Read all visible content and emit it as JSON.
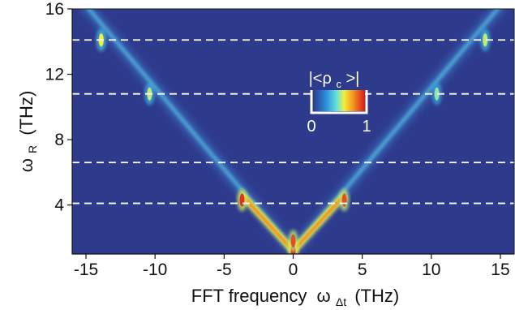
{
  "chart_data": {
    "type": "heatmap",
    "title": "",
    "xlabel": "FFT frequency",
    "xlabel_symbol": "ω",
    "xlabel_subscript": "Δt",
    "xlabel_unit": "(THz)",
    "ylabel_symbol": "ω",
    "ylabel_subscript": "R",
    "ylabel_unit": "(THz)",
    "xlim": [
      -16,
      16
    ],
    "ylim": [
      1,
      16
    ],
    "x_ticks": [
      -15,
      -10,
      -5,
      0,
      5,
      10,
      15
    ],
    "y_ticks": [
      4,
      8,
      12,
      16
    ],
    "x_tick_labels": [
      "-15",
      "-10",
      "-5",
      "0",
      "5",
      "10",
      "15"
    ],
    "y_tick_labels": [
      "4",
      "8",
      "12",
      "16"
    ],
    "dashed_lines_y": [
      14.1,
      10.8,
      6.6,
      4.1
    ],
    "colorbar": {
      "label": "|<ρ",
      "label_subscript": "c",
      "label_end": ">|",
      "min_label": "0",
      "max_label": "1",
      "range": [
        0,
        1
      ]
    },
    "features": {
      "v_shape_vertex": [
        0,
        1.2
      ],
      "v_shape_slope": 1.0,
      "hotspots": [
        {
          "x": 0,
          "y": 1.2,
          "value": 1.0
        },
        {
          "x": 0,
          "y": 1.8,
          "value": 0.9
        },
        {
          "x": -3.7,
          "y": 4.3,
          "value": 0.95
        },
        {
          "x": 3.7,
          "y": 4.3,
          "value": 0.9
        },
        {
          "x": -10.4,
          "y": 10.8,
          "value": 0.55
        },
        {
          "x": 10.4,
          "y": 10.8,
          "value": 0.5
        },
        {
          "x": -13.9,
          "y": 14.1,
          "value": 0.6
        },
        {
          "x": 13.9,
          "y": 14.1,
          "value": 0.55
        }
      ],
      "vertical_lines_x": [
        -13.9,
        -10.4,
        -3.7,
        0,
        3.7,
        10.4,
        13.9
      ]
    }
  }
}
